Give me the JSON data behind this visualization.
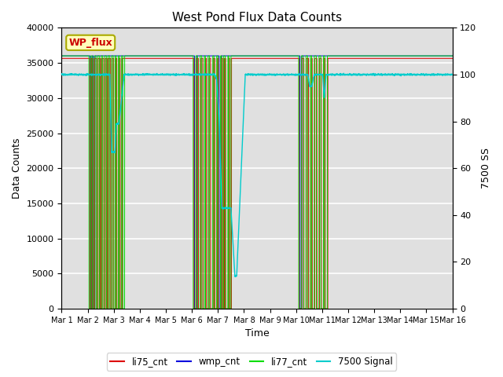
{
  "title": "West Pond Flux Data Counts",
  "ylabel_left": "Data Counts",
  "ylabel_right": "7500 SS",
  "xlabel": "Time",
  "ylim_left": [
    0,
    40000
  ],
  "ylim_right": [
    0,
    120
  ],
  "yticks_left": [
    0,
    5000,
    10000,
    15000,
    20000,
    25000,
    30000,
    35000,
    40000
  ],
  "yticks_right": [
    0,
    20,
    40,
    60,
    80,
    100,
    120
  ],
  "ax_background": "#e0e0e0",
  "grid_color": "#ffffff",
  "legend_label": "WP_flux",
  "series_colors": {
    "li75_cnt": "#dd0000",
    "wmp_cnt": "#0000dd",
    "li77_cnt": "#00dd00",
    "signal7500": "#00cccc"
  },
  "xtick_labels": [
    "Mar 1",
    "Mar 2",
    "Mar 3",
    "Mar 4",
    "Mar 5",
    "Mar 6",
    "Mar 7",
    "Mar 8",
    "Mar 9",
    "Mar 10",
    "Mar 11",
    "Mar 12",
    "Mar 13",
    "Mar 14",
    "Mar 15",
    "Mar 16"
  ]
}
